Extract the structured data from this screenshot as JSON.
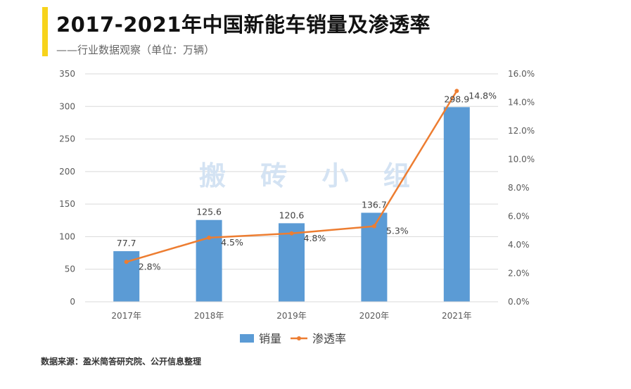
{
  "header": {
    "title": "2017-2021年中国新能车销量及渗透率",
    "subtitle": "——行业数据观察（单位：万辆）"
  },
  "watermark": "搬 砖 小 组",
  "footer": {
    "source": "数据来源：盈米简答研究院、公开信息整理"
  },
  "colors": {
    "bar": "#5b9bd5",
    "line": "#ed7d31",
    "accent": "#f7d31b"
  },
  "chart_data": {
    "type": "bar+line",
    "categories": [
      "2017年",
      "2018年",
      "2019年",
      "2020年",
      "2021年"
    ],
    "series": [
      {
        "name": "销量",
        "type": "bar",
        "axis": "left",
        "values": [
          77.7,
          125.6,
          120.6,
          136.7,
          298.9
        ],
        "labels": [
          "77.7",
          "125.6",
          "120.6",
          "136.7",
          "298.9"
        ]
      },
      {
        "name": "渗透率",
        "type": "line",
        "axis": "right",
        "values": [
          2.8,
          4.5,
          4.8,
          5.3,
          14.8
        ],
        "labels": [
          "2.8%",
          "4.5%",
          "4.8%",
          "5.3%",
          "14.8%"
        ]
      }
    ],
    "y_left": {
      "range": [
        0,
        350
      ],
      "ticks": [
        "0",
        "50",
        "100",
        "150",
        "200",
        "250",
        "300",
        "350"
      ]
    },
    "y_right": {
      "range": [
        0,
        16
      ],
      "ticks": [
        "0.0%",
        "2.0%",
        "4.0%",
        "6.0%",
        "8.0%",
        "10.0%",
        "12.0%",
        "14.0%",
        "16.0%"
      ]
    },
    "legend": {
      "position": "bottom",
      "items": [
        "销量",
        "渗透率"
      ]
    }
  }
}
